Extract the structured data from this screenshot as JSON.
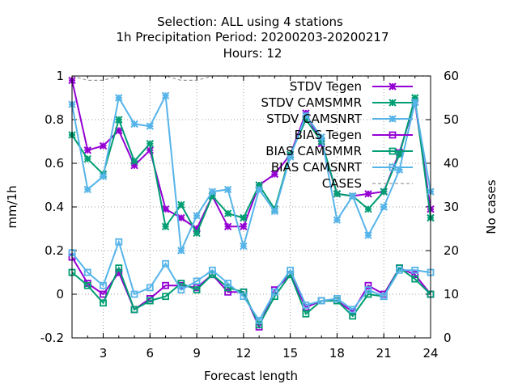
{
  "chart_data": {
    "type": "line",
    "title_lines": [
      "Selection: ALL using     4 stations",
      "1h Precipitation   Period: 20200203-20200217",
      "Hours:  12"
    ],
    "xlabel": "Forecast length",
    "ylabel": "mm/1h",
    "y2label": "No cases",
    "xlim": [
      1,
      24
    ],
    "ylim": [
      -0.2,
      1
    ],
    "y2lim": [
      0,
      60
    ],
    "xticks": [
      "3",
      "6",
      "9",
      "12",
      "15",
      "18",
      "21",
      "24"
    ],
    "yticks": [
      "-0.2",
      "0",
      "0.2",
      "0.4",
      "0.6",
      "0.8",
      "1"
    ],
    "y2ticks": [
      "0",
      "10",
      "20",
      "30",
      "40",
      "50",
      "60"
    ],
    "grid": true,
    "legend_position": "top-right",
    "x": [
      1,
      2,
      3,
      4,
      5,
      6,
      7,
      8,
      9,
      10,
      11,
      12,
      13,
      14,
      15,
      16,
      17,
      18,
      19,
      20,
      21,
      22,
      23,
      24
    ],
    "series": [
      {
        "name": "STDV Tegen",
        "color": "#9400d3",
        "marker": "x",
        "axis": "y1",
        "values": [
          0.98,
          0.66,
          0.68,
          0.75,
          0.59,
          0.66,
          0.39,
          0.35,
          0.3,
          0.45,
          0.31,
          0.31,
          0.5,
          0.55,
          0.64,
          0.83,
          0.69,
          0.46,
          0.45,
          0.46,
          0.47,
          0.65,
          0.88,
          0.39
        ]
      },
      {
        "name": "STDV CAMSMMR",
        "color": "#009e73",
        "marker": "x",
        "axis": "y1",
        "values": [
          0.73,
          0.62,
          0.55,
          0.8,
          0.61,
          0.69,
          0.31,
          0.41,
          0.28,
          0.45,
          0.37,
          0.35,
          0.5,
          0.39,
          0.64,
          0.8,
          0.7,
          0.46,
          0.45,
          0.39,
          0.47,
          0.64,
          0.9,
          0.35
        ]
      },
      {
        "name": "STDV CAMSNRT",
        "color": "#56b4e9",
        "marker": "x",
        "axis": "y1",
        "values": [
          0.87,
          0.48,
          0.54,
          0.9,
          0.78,
          0.77,
          0.91,
          0.2,
          0.36,
          0.47,
          0.48,
          0.22,
          0.48,
          0.38,
          0.63,
          0.82,
          0.72,
          0.34,
          0.45,
          0.27,
          0.4,
          0.57,
          0.88,
          0.47
        ]
      },
      {
        "name": "BIAS Tegen",
        "color": "#9400d3",
        "marker": "square",
        "axis": "y1",
        "values": [
          0.17,
          0.05,
          0.0,
          0.1,
          -0.07,
          -0.02,
          0.04,
          0.04,
          0.03,
          0.09,
          0.01,
          0.01,
          -0.15,
          0.02,
          0.09,
          -0.06,
          -0.03,
          -0.03,
          -0.08,
          0.04,
          0.0,
          0.12,
          0.09,
          0.0
        ]
      },
      {
        "name": "BIAS CAMSMMR",
        "color": "#009e73",
        "marker": "square",
        "axis": "y1",
        "values": [
          0.1,
          0.04,
          -0.04,
          0.12,
          -0.07,
          -0.03,
          -0.01,
          0.05,
          0.02,
          0.09,
          0.03,
          0.01,
          -0.14,
          -0.01,
          0.09,
          -0.09,
          -0.03,
          -0.03,
          -0.1,
          0.0,
          -0.01,
          0.12,
          0.07,
          0.0
        ]
      },
      {
        "name": "BIAS CAMSNRT",
        "color": "#56b4e9",
        "marker": "square",
        "axis": "y1",
        "values": [
          0.19,
          0.1,
          0.04,
          0.24,
          0.0,
          0.03,
          0.14,
          0.02,
          0.06,
          0.11,
          0.05,
          -0.01,
          -0.12,
          0.01,
          0.11,
          -0.05,
          -0.03,
          -0.02,
          -0.07,
          0.02,
          -0.01,
          0.11,
          0.11,
          0.1
        ]
      },
      {
        "name": "CASES",
        "color": "#999999",
        "marker": "none",
        "dashed": true,
        "axis": "y2",
        "values": [
          60,
          59,
          59,
          60,
          60,
          60,
          60,
          59,
          59,
          60,
          60,
          60,
          60,
          60,
          60,
          60,
          60,
          60,
          60,
          60,
          60,
          60,
          60,
          60
        ]
      }
    ]
  }
}
